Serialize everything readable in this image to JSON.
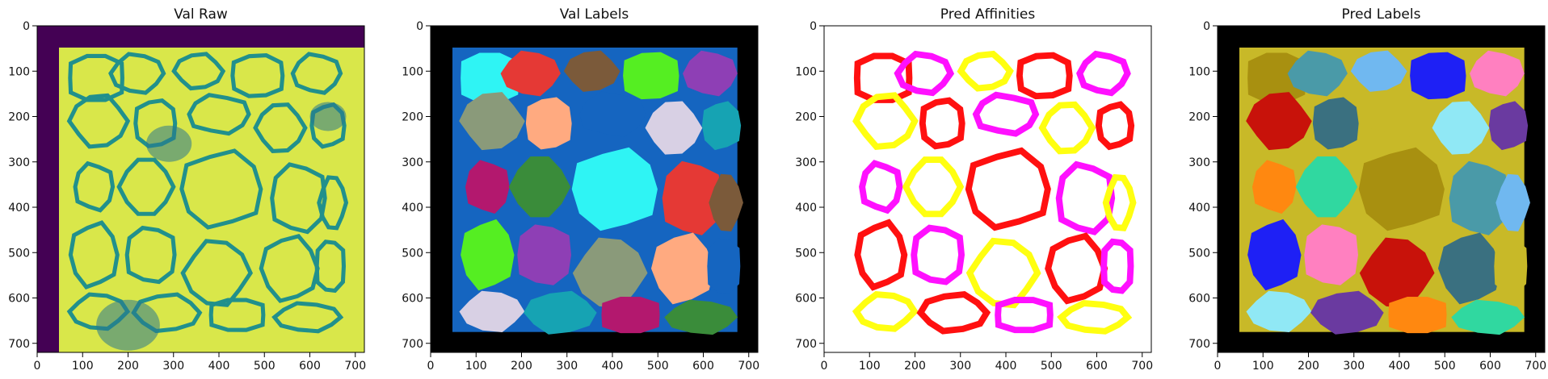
{
  "panels": [
    {
      "id": "val-raw",
      "title": "Val Raw",
      "xticks": [
        0,
        100,
        200,
        300,
        400,
        500,
        600,
        700
      ],
      "yticks": [
        0,
        100,
        200,
        300,
        400,
        500,
        600,
        700
      ],
      "colors": {
        "background": "#d9e74a",
        "border": "#440154",
        "membrane": "#21908c",
        "dark": "#2a788e"
      }
    },
    {
      "id": "val-labels",
      "title": "Val Labels",
      "xticks": [
        0,
        100,
        200,
        300,
        400,
        500,
        600,
        700
      ],
      "yticks": [
        0,
        100,
        200,
        300,
        400,
        500,
        600,
        700
      ],
      "colors": {
        "border": "#000000",
        "segments": [
          "#1565c0",
          "#2ff4f4",
          "#8a9a7a",
          "#b3186e",
          "#55ee22",
          "#d8d0e4",
          "#e53935",
          "#ffaa80",
          "#3a8c3a",
          "#8e3fb5",
          "#16a3b3",
          "#7b5a3a"
        ]
      }
    },
    {
      "id": "pred-affinities",
      "title": "Pred Affinities",
      "xticks": [
        0,
        100,
        200,
        300,
        400,
        500,
        600,
        700
      ],
      "yticks": [
        0,
        100,
        200,
        300,
        400,
        500,
        600,
        700
      ],
      "colors": {
        "background": "#ffffff",
        "red": "#ff1010",
        "magenta": "#ff10ff",
        "yellow": "#ffff10"
      }
    },
    {
      "id": "pred-labels",
      "title": "Pred Labels",
      "xticks": [
        0,
        100,
        200,
        300,
        400,
        500,
        600,
        700
      ],
      "yticks": [
        0,
        100,
        200,
        300,
        400,
        500,
        600,
        700
      ],
      "colors": {
        "border": "#000000",
        "segments": [
          "#c8b928",
          "#a89010",
          "#c8120a",
          "#ff8810",
          "#1e20f5",
          "#90e8f5",
          "#4a9aa8",
          "#3a7080",
          "#30d8a0",
          "#ff80c0",
          "#6a3aa0",
          "#70b8f0"
        ]
      }
    }
  ]
}
